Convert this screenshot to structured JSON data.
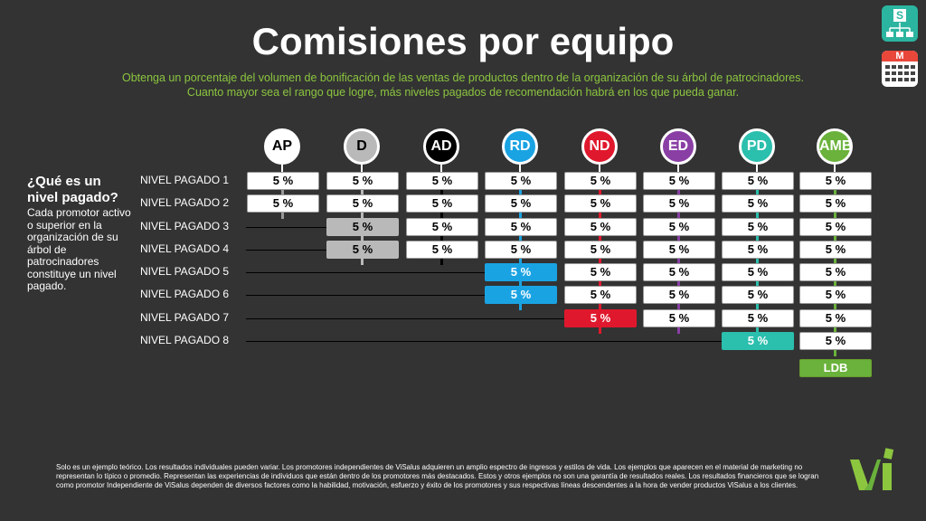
{
  "title": "Comisiones por equipo",
  "subtitle": {
    "line1": "Obtenga un porcentaje del volumen de bonificación de las ventas de productos dentro de la organización de su árbol de patrocinadores.",
    "line2": "Cuanto mayor sea el rango que logre, más niveles pagados de recomendación habrá en los que pueda ganar."
  },
  "colors": {
    "accent_green": "#8cc63f",
    "background": "#333333"
  },
  "icons": {
    "top": {
      "name": "sponsor-tree-icon",
      "letter": "S"
    },
    "bottom": {
      "name": "calendar-icon",
      "letter": "M"
    }
  },
  "ranks": [
    {
      "label": "AP",
      "color": "#ffffff",
      "text_color": "#000000"
    },
    {
      "label": "D",
      "color": "#b9b9b9",
      "text_color": "#000000"
    },
    {
      "label": "AD",
      "color": "#000000",
      "text_color": "#ffffff"
    },
    {
      "label": "RD",
      "color": "#1aa3e3",
      "text_color": "#ffffff"
    },
    {
      "label": "ND",
      "color": "#e0182d",
      "text_color": "#ffffff"
    },
    {
      "label": "ED",
      "color": "#8a3fa5",
      "text_color": "#ffffff"
    },
    {
      "label": "PD",
      "color": "#2bbfae",
      "text_color": "#ffffff"
    },
    {
      "label": "AMB",
      "color": "#6ab23b",
      "text_color": "#ffffff"
    }
  ],
  "question": {
    "title": "¿Qué es un nivel pagado?",
    "body": "Cada promotor activo o superior en la organización de su árbol de patrocinadores constituye un nivel pagado."
  },
  "levels": [
    {
      "label": "NIVEL PAGADO 1",
      "start_rank": 0
    },
    {
      "label": "NIVEL PAGADO 2",
      "start_rank": 0
    },
    {
      "label": "NIVEL PAGADO 3",
      "start_rank": 1
    },
    {
      "label": "NIVEL PAGADO 4",
      "start_rank": 1
    },
    {
      "label": "NIVEL PAGADO 5",
      "start_rank": 3
    },
    {
      "label": "NIVEL PAGADO 6",
      "start_rank": 3
    },
    {
      "label": "NIVEL PAGADO 7",
      "start_rank": 4
    },
    {
      "label": "NIVEL PAGADO 8",
      "start_rank": 6
    }
  ],
  "cell_value": "5 %",
  "ldb": "LDB",
  "disclaimer": "Solo es un ejemplo teórico. Los resultados individuales pueden variar.  Los promotores independientes de ViSalus adquieren un amplio espectro de ingresos y estilos de vida. Los ejemplos que aparecen en el material de marketing no representan lo típico o promedio. Representan las experiencias de individuos que están dentro de los promotores más destacados.  Estos y otros ejemplos no son una garantía de resultados reales. Los resultados financieros que se logran como promotor Independiente de ViSalus dependen de diversos factores como la habilidad, motivación, esfuerzo y éxito de los promotores y sus respectivas líneas descendentes a la hora de vender productos ViSalus a los clientes.",
  "logo": {
    "name": "visalus-logo",
    "text": "Vi",
    "color": "#8cc63f"
  }
}
